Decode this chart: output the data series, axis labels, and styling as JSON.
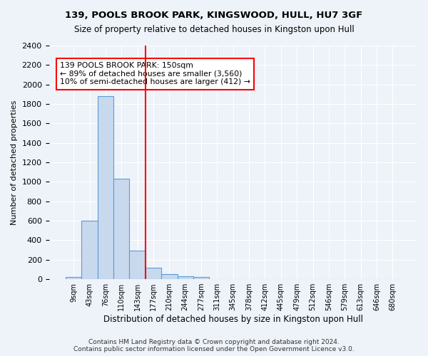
{
  "title1": "139, POOLS BROOK PARK, KINGSWOOD, HULL, HU7 3GF",
  "title2": "Size of property relative to detached houses in Kingston upon Hull",
  "xlabel": "Distribution of detached houses by size in Kingston upon Hull",
  "ylabel": "Number of detached properties",
  "footnote": "Contains HM Land Registry data © Crown copyright and database right 2024.\nContains public sector information licensed under the Open Government Licence v3.0.",
  "bin_labels": [
    "9sqm",
    "43sqm",
    "76sqm",
    "110sqm",
    "143sqm",
    "177sqm",
    "210sqm",
    "244sqm",
    "277sqm",
    "311sqm",
    "345sqm",
    "378sqm",
    "412sqm",
    "445sqm",
    "479sqm",
    "512sqm",
    "546sqm",
    "579sqm",
    "613sqm",
    "646sqm",
    "680sqm"
  ],
  "bar_heights": [
    20,
    600,
    1880,
    1030,
    290,
    115,
    50,
    30,
    20,
    0,
    0,
    0,
    0,
    0,
    0,
    0,
    0,
    0,
    0,
    0,
    0
  ],
  "bar_color": "#c8d9ee",
  "bar_edge_color": "#5b9bd5",
  "vline_x": 4.5,
  "vline_color": "red",
  "annotation_text": "139 POOLS BROOK PARK: 150sqm\n← 89% of detached houses are smaller (3,560)\n10% of semi-detached houses are larger (412) →",
  "annotation_box_color": "white",
  "annotation_box_edge": "red",
  "ylim": [
    0,
    2400
  ],
  "yticks": [
    0,
    200,
    400,
    600,
    800,
    1000,
    1200,
    1400,
    1600,
    1800,
    2000,
    2200,
    2400
  ],
  "bg_color": "#eef3fa",
  "grid_color": "white"
}
